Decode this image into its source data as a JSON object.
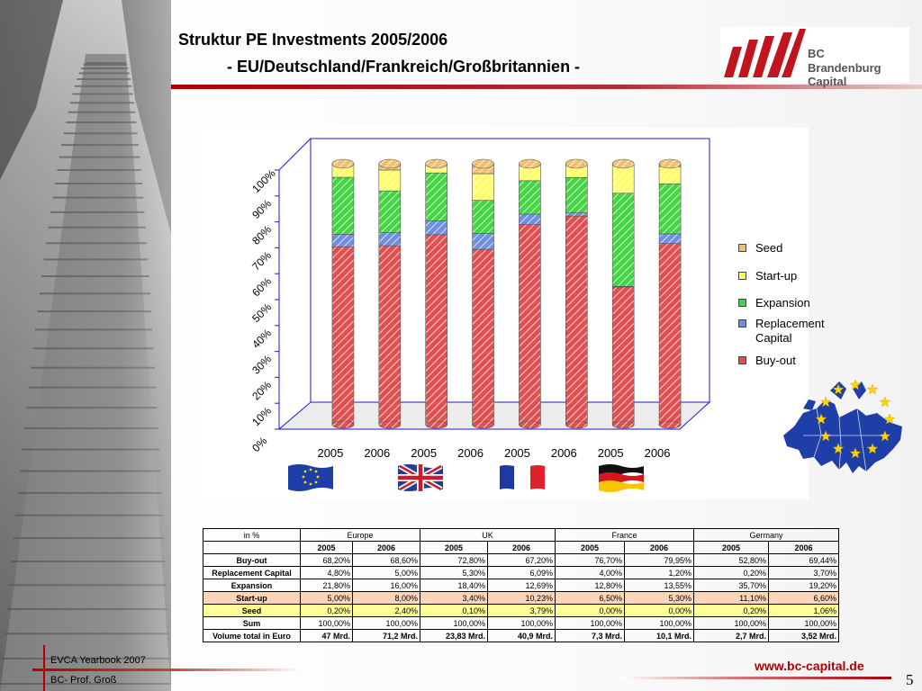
{
  "title": {
    "line1": "Struktur PE Investments 2005/2006",
    "line2": "- EU/Deutschland/Frankreich/Großbritannien -"
  },
  "logo": {
    "line1": "BC",
    "line2": "Brandenburg Capital",
    "icon": "bc-logo-bars-icon",
    "color": "#c0141e"
  },
  "chart_data": {
    "type": "bar",
    "stacked": true,
    "percent_stacked": true,
    "categories": [
      "2005",
      "2006",
      "2005",
      "2006",
      "2005",
      "2006",
      "2005",
      "2006"
    ],
    "groups": [
      "Europe",
      "UK",
      "France",
      "Germany"
    ],
    "ylim": [
      0,
      100
    ],
    "yticks": [
      "0%",
      "10%",
      "20%",
      "30%",
      "40%",
      "50%",
      "60%",
      "70%",
      "80%",
      "90%",
      "100%"
    ],
    "legend_position": "right",
    "series": [
      {
        "name": "Buy-out",
        "color": "#e05050",
        "values": [
          68.2,
          68.6,
          72.8,
          67.2,
          76.7,
          79.95,
          52.8,
          69.44
        ]
      },
      {
        "name": "Replacement Capital",
        "color": "#6f8fe0",
        "values": [
          4.8,
          5.0,
          5.3,
          6.09,
          4.0,
          1.2,
          0.2,
          3.7
        ]
      },
      {
        "name": "Expansion",
        "color": "#44d444",
        "values": [
          21.8,
          16.0,
          18.4,
          12.69,
          12.8,
          13.55,
          35.7,
          19.2
        ]
      },
      {
        "name": "Start-up",
        "color": "#ffff66",
        "values": [
          5.0,
          8.0,
          3.4,
          10.23,
          6.5,
          5.3,
          11.1,
          6.6
        ]
      },
      {
        "name": "Seed",
        "color": "#f0c070",
        "values": [
          0.2,
          2.4,
          0.1,
          3.79,
          0.0,
          0.0,
          0.2,
          1.06
        ]
      }
    ],
    "legend_order": [
      "Seed",
      "Start-up",
      "Expansion",
      "Replacement Capital",
      "Buy-out"
    ]
  },
  "flags": [
    {
      "name": "eu-flag-icon",
      "label": "Europe"
    },
    {
      "name": "uk-flag-icon",
      "label": "UK"
    },
    {
      "name": "france-flag-icon",
      "label": "France"
    },
    {
      "name": "germany-flag-icon",
      "label": "Germany"
    }
  ],
  "table": {
    "corner": "in %",
    "groups": [
      "Europe",
      "UK",
      "France",
      "Germany"
    ],
    "years": [
      "2005",
      "2006",
      "2005",
      "2006",
      "2005",
      "2006",
      "2005",
      "2006"
    ],
    "rows": [
      {
        "label": "Buy-out",
        "cls": "",
        "values": [
          "68,20%",
          "68,60%",
          "72,80%",
          "67,20%",
          "76,70%",
          "79,95%",
          "52,80%",
          "69,44%"
        ]
      },
      {
        "label": "Replacement Capital",
        "cls": "",
        "values": [
          "4,80%",
          "5,00%",
          "5,30%",
          "6,09%",
          "4,00%",
          "1,20%",
          "0,20%",
          "3,70%"
        ]
      },
      {
        "label": "Expansion",
        "cls": "",
        "values": [
          "21,80%",
          "16,00%",
          "18,40%",
          "12,69%",
          "12,80%",
          "13,55%",
          "35,70%",
          "19,20%"
        ]
      },
      {
        "label": "Start-up",
        "cls": "startup",
        "values": [
          "5,00%",
          "8,00%",
          "3,40%",
          "10,23%",
          "6,50%",
          "5,30%",
          "11,10%",
          "6,60%"
        ]
      },
      {
        "label": "Seed",
        "cls": "seed",
        "values": [
          "0,20%",
          "2,40%",
          "0,10%",
          "3,79%",
          "0,00%",
          "0,00%",
          "0,20%",
          "1,06%"
        ]
      },
      {
        "label": "Sum",
        "cls": "",
        "values": [
          "100,00%",
          "100,00%",
          "100,00%",
          "100,00%",
          "100,00%",
          "100,00%",
          "100,00%",
          "100,00%"
        ]
      },
      {
        "label": "Volume total in Euro",
        "cls": "volume",
        "values": [
          "47 Mrd.",
          "71,2 Mrd.",
          "23,83 Mrd.",
          "40,9 Mrd.",
          "7,3 Mrd.",
          "10,1 Mrd.",
          "2,7 Mrd.",
          "3,52 Mrd."
        ]
      }
    ]
  },
  "footer": {
    "source": "EVCA Yearbook 2007",
    "author": "BC- Prof. Groß",
    "url": "www.bc-capital.de",
    "page_number": "5"
  },
  "decor": {
    "photo": "stairs-photo",
    "map": "europe-map-icon"
  }
}
